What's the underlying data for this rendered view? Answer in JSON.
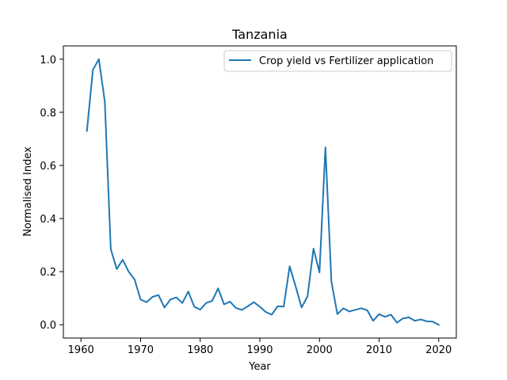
{
  "chart_data": {
    "type": "line",
    "title": "Tanzania",
    "xlabel": "Year",
    "ylabel": "Normalised Index",
    "xlim": [
      1957.05,
      2022.95
    ],
    "ylim": [
      -0.05,
      1.05
    ],
    "xticks": [
      1960,
      1970,
      1980,
      1990,
      2000,
      2010,
      2020
    ],
    "yticks": [
      0.0,
      0.2,
      0.4,
      0.6,
      0.8,
      1.0
    ],
    "xtick_labels": [
      "1960",
      "1970",
      "1980",
      "1990",
      "2000",
      "2010",
      "2020"
    ],
    "ytick_labels": [
      "0.0",
      "0.2",
      "0.4",
      "0.6",
      "0.8",
      "1.0"
    ],
    "grid": false,
    "legend_position": "upper right",
    "series": [
      {
        "name": "Crop yield vs Fertilizer application",
        "color": "#1f77b4",
        "x": [
          1961,
          1962,
          1963,
          1964,
          1965,
          1966,
          1967,
          1968,
          1969,
          1970,
          1971,
          1972,
          1973,
          1974,
          1975,
          1976,
          1977,
          1978,
          1979,
          1980,
          1981,
          1982,
          1983,
          1984,
          1985,
          1986,
          1987,
          1988,
          1989,
          1990,
          1991,
          1992,
          1993,
          1994,
          1995,
          1996,
          1997,
          1998,
          1999,
          2000,
          2001,
          2002,
          2003,
          2004,
          2005,
          2006,
          2007,
          2008,
          2009,
          2010,
          2011,
          2012,
          2013,
          2014,
          2015,
          2016,
          2017,
          2018,
          2019,
          2020
        ],
        "y": [
          0.73,
          0.96,
          1.0,
          0.84,
          0.285,
          0.21,
          0.245,
          0.2,
          0.17,
          0.095,
          0.085,
          0.105,
          0.112,
          0.065,
          0.095,
          0.103,
          0.082,
          0.125,
          0.068,
          0.057,
          0.082,
          0.09,
          0.137,
          0.077,
          0.087,
          0.063,
          0.056,
          0.07,
          0.085,
          0.068,
          0.048,
          0.038,
          0.07,
          0.068,
          0.22,
          0.145,
          0.065,
          0.107,
          0.287,
          0.197,
          0.668,
          0.163,
          0.04,
          0.062,
          0.05,
          0.056,
          0.062,
          0.055,
          0.015,
          0.04,
          0.03,
          0.038,
          0.008,
          0.024,
          0.028,
          0.015,
          0.02,
          0.013,
          0.012,
          0.0
        ]
      }
    ]
  }
}
